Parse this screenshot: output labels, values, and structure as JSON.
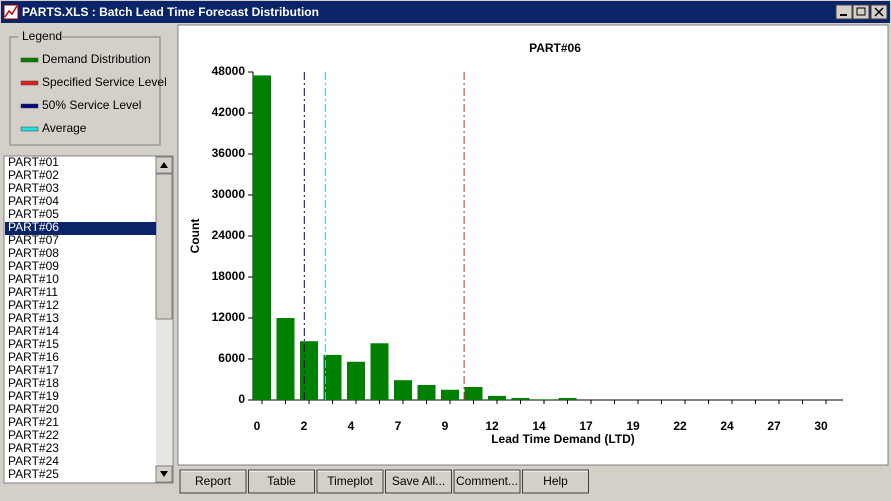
{
  "window": {
    "title": "PARTS.XLS : Batch Lead Time Forecast Distribution"
  },
  "legend_title": "Legend",
  "parts": {
    "items": [
      "PART#01",
      "PART#02",
      "PART#03",
      "PART#04",
      "PART#05",
      "PART#06",
      "PART#07",
      "PART#08",
      "PART#09",
      "PART#10",
      "PART#11",
      "PART#12",
      "PART#13",
      "PART#14",
      "PART#15",
      "PART#16",
      "PART#17",
      "PART#18",
      "PART#19",
      "PART#20",
      "PART#21",
      "PART#22",
      "PART#23",
      "PART#24",
      "PART#25"
    ],
    "selected": 5
  },
  "buttons": [
    "Report",
    "Table",
    "Timeplot",
    "Save All...",
    "Comment...",
    "Help"
  ],
  "chart_data": {
    "type": "bar",
    "title": "PART#06",
    "x_label": "Lead Time Demand (LTD)",
    "y_label": "Count",
    "categories": [
      "0",
      null,
      "2",
      null,
      "4",
      null,
      "7",
      null,
      "9",
      null,
      "12",
      null,
      "14",
      null,
      "17",
      null,
      "19",
      null,
      "22",
      null,
      "24",
      null,
      "27",
      null,
      "30"
    ],
    "series": [
      {
        "name": "Demand Distribution",
        "color": "#008000",
        "values": [
          47500,
          12000,
          8600,
          6600,
          5600,
          8300,
          2900,
          2200,
          1500,
          1900,
          600,
          300,
          100,
          300,
          0,
          0,
          0,
          0,
          0,
          0,
          0,
          0,
          0,
          0,
          0
        ]
      }
    ],
    "reference_lines": [
      {
        "name": "Specified Service Level",
        "color": "#e02020",
        "x": 8.6
      },
      {
        "name": "50% Service Level",
        "color": "#000080",
        "x": 1.8
      },
      {
        "name": "Average",
        "color": "#20e0e0",
        "x": 2.7
      }
    ],
    "ylim": [
      0,
      48000
    ],
    "yticks": [
      0,
      6000,
      12000,
      18000,
      24000,
      30000,
      36000,
      42000,
      48000
    ]
  }
}
